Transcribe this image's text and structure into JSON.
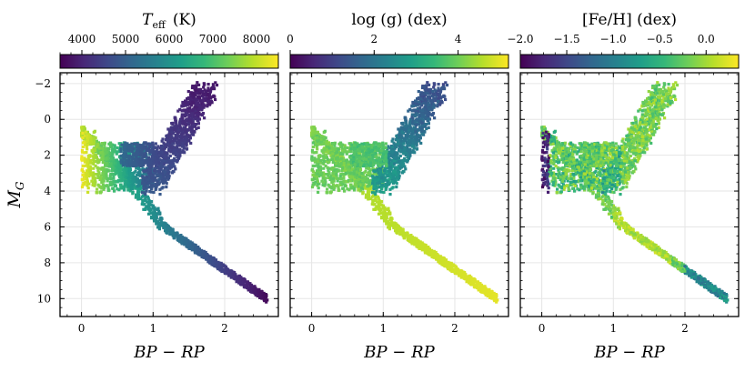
{
  "chart_data": [
    {
      "type": "scatter",
      "panel": "Teff",
      "colorbar": {
        "title": "T_eff (K)",
        "title_main": "T",
        "title_sub": "eff",
        "title_unit": "(K)",
        "range": [
          3500,
          8500
        ],
        "ticks": [
          4000,
          5000,
          6000,
          7000,
          8000
        ],
        "tick_labels": [
          "4000",
          "5000",
          "6000",
          "7000",
          "8000"
        ]
      },
      "xlabel": "BP − RP",
      "ylabel": "M_G",
      "xlim": [
        -0.3,
        2.75
      ],
      "ylim": [
        11.0,
        -2.6
      ],
      "xticks": [
        0,
        1,
        2
      ],
      "xtick_labels": [
        "0",
        "1",
        "2"
      ],
      "yticks": [
        -2,
        0,
        2,
        4,
        6,
        8,
        10
      ],
      "ytick_labels": [
        "−2",
        "0",
        "2",
        "4",
        "6",
        "8",
        "10"
      ],
      "grid": true
    },
    {
      "type": "scatter",
      "panel": "logg",
      "colorbar": {
        "title": "log (g) (dex)",
        "range": [
          0,
          5.2
        ],
        "ticks": [
          0,
          2,
          4
        ],
        "tick_labels": [
          "0",
          "2",
          "4"
        ]
      },
      "xlabel": "BP − RP",
      "xlim": [
        -0.3,
        2.75
      ],
      "ylim": [
        11.0,
        -2.6
      ],
      "xticks": [
        0,
        1,
        2
      ],
      "xtick_labels": [
        "0",
        "1",
        "2"
      ],
      "grid": true
    },
    {
      "type": "scatter",
      "panel": "FeH",
      "colorbar": {
        "title": "[Fe/H] (dex)",
        "range": [
          -2.0,
          0.35
        ],
        "ticks": [
          -2.0,
          -1.5,
          -1.0,
          -0.5,
          0.0
        ],
        "tick_labels": [
          "−2.0",
          "−1.5",
          "−1.0",
          "−0.5",
          "0.0"
        ]
      },
      "xlabel": "BP − RP",
      "xlim": [
        -0.3,
        2.75
      ],
      "ylim": [
        11.0,
        -2.6
      ],
      "xticks": [
        0,
        1,
        2
      ],
      "xtick_labels": [
        "0",
        "1",
        "2"
      ],
      "grid": true
    }
  ],
  "colors": {
    "viridis": [
      "#440154",
      "#482878",
      "#3e4989",
      "#31688e",
      "#26828e",
      "#1f9e89",
      "#35b779",
      "#6ece58",
      "#b5de2b",
      "#fde725"
    ],
    "grid": "#e6e6e6"
  }
}
